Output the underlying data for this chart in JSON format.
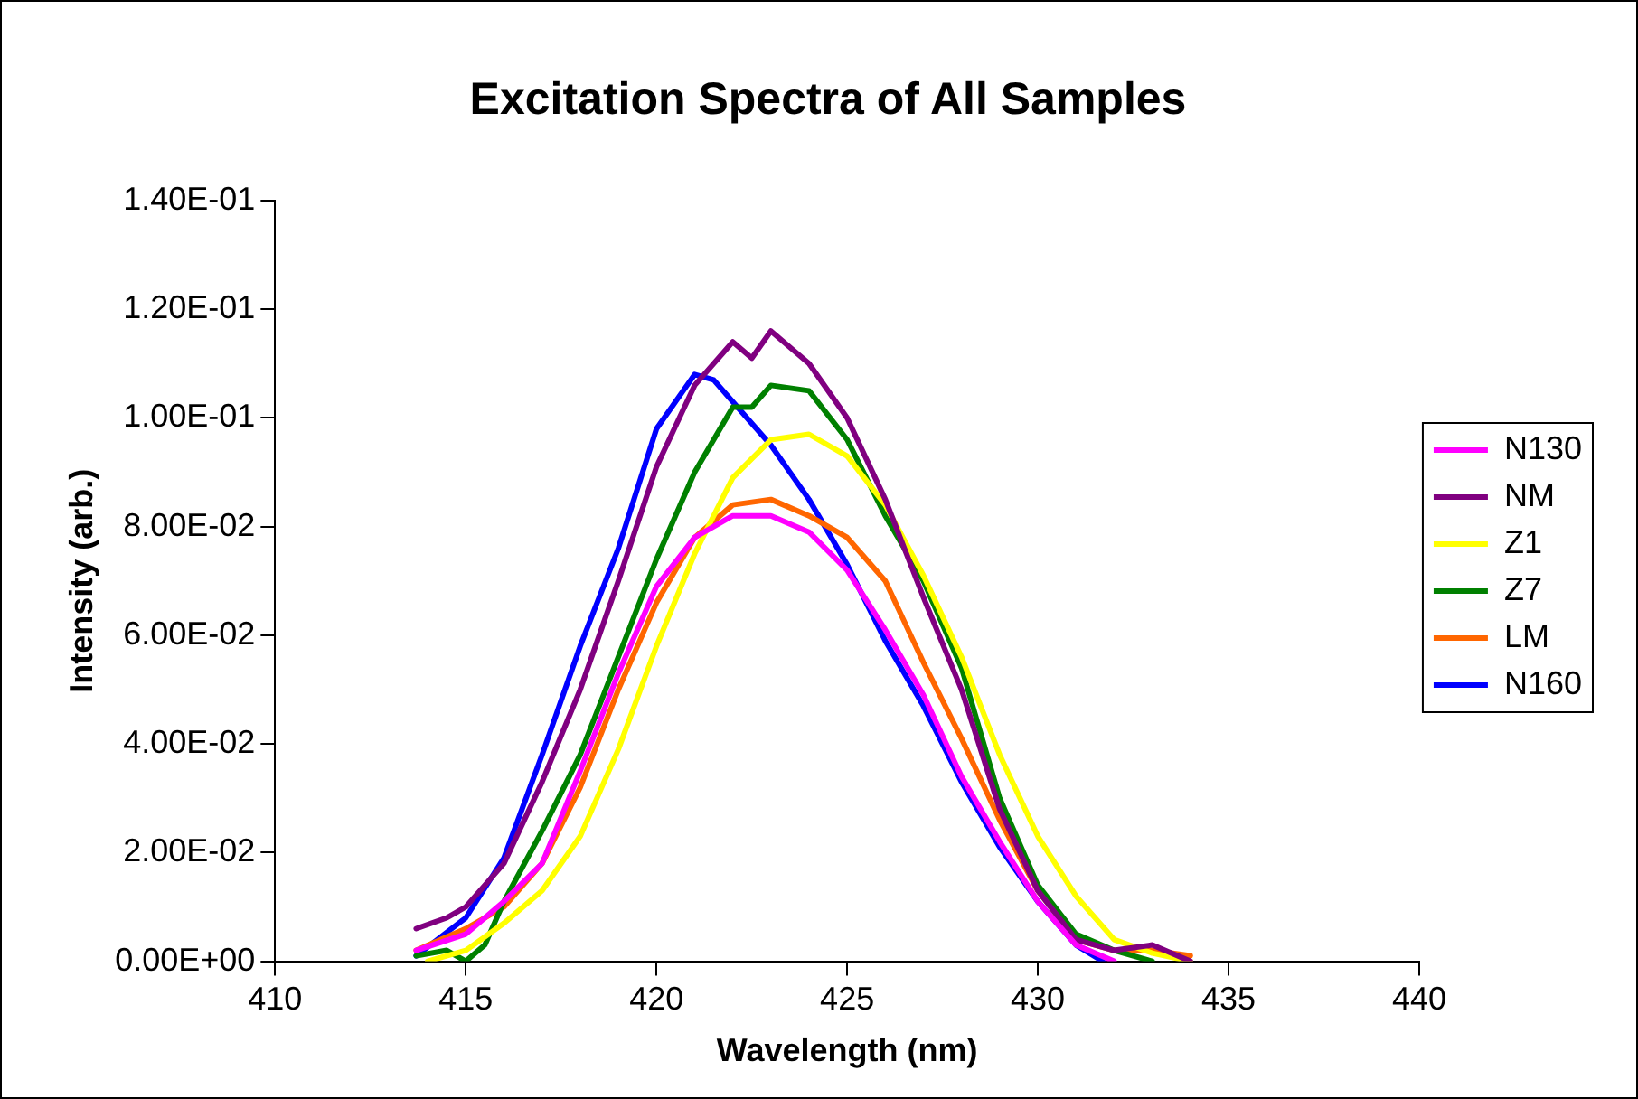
{
  "chart_data": {
    "type": "line",
    "title": "Excitation Spectra of All Samples",
    "xlabel": "Wavelength (nm)",
    "ylabel": "Intensity (arb.)",
    "xlim": [
      410,
      440
    ],
    "xticks": [
      410,
      415,
      420,
      425,
      430,
      435,
      440
    ],
    "ylim": [
      0,
      0.14
    ],
    "yticks": [
      {
        "value": 0,
        "label": "0.00E+00"
      },
      {
        "value": 0.02,
        "label": "2.00E-02"
      },
      {
        "value": 0.04,
        "label": "4.00E-02"
      },
      {
        "value": 0.06,
        "label": "6.00E-02"
      },
      {
        "value": 0.08,
        "label": "8.00E-02"
      },
      {
        "value": 0.1,
        "label": "1.00E-01"
      },
      {
        "value": 0.12,
        "label": "1.20E-01"
      },
      {
        "value": 0.14,
        "label": "1.40E-01"
      }
    ],
    "grid": false,
    "legend": "right",
    "marker": "none",
    "line_style": "solid",
    "series": [
      {
        "name": "N130",
        "color": "#ff00ff",
        "x": [
          413.7,
          415,
          416,
          417,
          418,
          419,
          420,
          421,
          422,
          423,
          424,
          425,
          426,
          427,
          428,
          429,
          430,
          431,
          432
        ],
        "values": [
          0.002,
          0.005,
          0.011,
          0.018,
          0.035,
          0.053,
          0.069,
          0.078,
          0.082,
          0.082,
          0.079,
          0.072,
          0.061,
          0.049,
          0.034,
          0.022,
          0.011,
          0.003,
          0
        ]
      },
      {
        "name": "NM",
        "color": "#800080",
        "x": [
          413.7,
          414.5,
          415,
          416,
          417,
          418,
          419,
          420,
          421,
          422,
          422.5,
          423,
          424,
          425,
          426,
          427,
          428,
          429,
          430,
          431,
          432,
          433,
          434
        ],
        "values": [
          0.006,
          0.008,
          0.01,
          0.018,
          0.033,
          0.05,
          0.07,
          0.091,
          0.106,
          0.114,
          0.111,
          0.116,
          0.11,
          0.1,
          0.085,
          0.067,
          0.05,
          0.028,
          0.013,
          0.004,
          0.002,
          0.003,
          0
        ]
      },
      {
        "name": "Z1",
        "color": "#ffff00",
        "x": [
          414,
          415,
          416,
          417,
          418,
          419,
          420,
          421,
          422,
          423,
          424,
          425,
          426,
          427,
          428,
          429,
          430,
          431,
          432,
          433,
          434
        ],
        "values": [
          0,
          0.002,
          0.007,
          0.013,
          0.023,
          0.039,
          0.058,
          0.075,
          0.089,
          0.096,
          0.097,
          0.093,
          0.084,
          0.071,
          0.056,
          0.038,
          0.023,
          0.012,
          0.004,
          0.0015,
          0
        ]
      },
      {
        "name": "Z7",
        "color": "#008000",
        "x": [
          413.7,
          414.5,
          415,
          415.5,
          416,
          417,
          418,
          419,
          420,
          421,
          422,
          422.5,
          423,
          424,
          425,
          426,
          427,
          428,
          429,
          430,
          431,
          432,
          433
        ],
        "values": [
          0.001,
          0.002,
          0,
          0.003,
          0.011,
          0.024,
          0.038,
          0.056,
          0.074,
          0.09,
          0.102,
          0.102,
          0.106,
          0.105,
          0.096,
          0.082,
          0.07,
          0.054,
          0.03,
          0.014,
          0.005,
          0.002,
          0
        ]
      },
      {
        "name": "LM",
        "color": "#ff6600",
        "x": [
          413.7,
          415,
          416,
          417,
          418,
          419,
          420,
          421,
          422,
          423,
          424,
          425,
          426,
          427,
          428,
          429,
          430,
          431,
          432,
          433,
          434
        ],
        "values": [
          0.002,
          0.006,
          0.01,
          0.018,
          0.032,
          0.05,
          0.066,
          0.078,
          0.084,
          0.085,
          0.082,
          0.078,
          0.07,
          0.055,
          0.041,
          0.026,
          0.013,
          0.004,
          0.002,
          0.002,
          0.001
        ]
      },
      {
        "name": "N160",
        "color": "#0000ff",
        "x": [
          413.7,
          415,
          416,
          417,
          418,
          419,
          420,
          421,
          421.5,
          422,
          423,
          424,
          425,
          426,
          427,
          428,
          429,
          430,
          431,
          431.7
        ],
        "values": [
          0.001,
          0.008,
          0.019,
          0.038,
          0.058,
          0.076,
          0.098,
          0.108,
          0.107,
          0.103,
          0.095,
          0.085,
          0.073,
          0.059,
          0.047,
          0.033,
          0.021,
          0.011,
          0.003,
          0
        ]
      }
    ]
  }
}
